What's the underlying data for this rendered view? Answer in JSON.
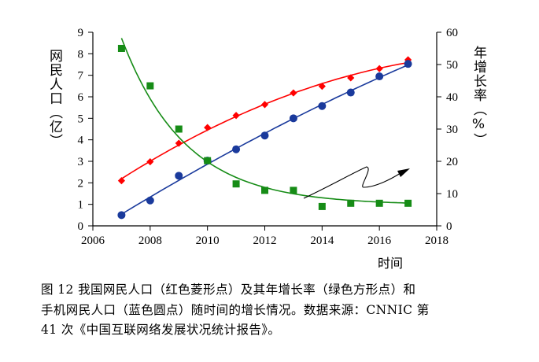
{
  "chart_data": {
    "type": "line",
    "title": "",
    "xlabel": "时间",
    "ylabel_left": "网民人口（亿）",
    "ylabel_right": "年增长率（%）",
    "x_ticks": [
      2006,
      2008,
      2010,
      2012,
      2014,
      2016,
      2018
    ],
    "y_left_ticks": [
      0,
      1,
      2,
      3,
      4,
      5,
      6,
      7,
      8,
      9
    ],
    "y_right_ticks": [
      0,
      10,
      20,
      30,
      40,
      50,
      60
    ],
    "xlim": [
      2006,
      2018
    ],
    "ylim_left": [
      0,
      9
    ],
    "ylim_right": [
      0,
      60
    ],
    "x": [
      2007,
      2008,
      2009,
      2010,
      2011,
      2012,
      2013,
      2014,
      2015,
      2016,
      2017
    ],
    "series": [
      {
        "name": "网民人口",
        "marker": "diamond",
        "axis": "left",
        "color": "#ff0000",
        "values": [
          2.1,
          2.98,
          3.84,
          4.57,
          5.13,
          5.64,
          6.18,
          6.49,
          6.88,
          7.31,
          7.72
        ]
      },
      {
        "name": "手机网民人口",
        "marker": "circle",
        "axis": "left",
        "color": "#1a3a9c",
        "values": [
          0.5,
          1.18,
          2.33,
          3.03,
          3.56,
          4.2,
          5.0,
          5.57,
          6.2,
          6.95,
          7.53
        ]
      },
      {
        "name": "年增长率",
        "marker": "square",
        "axis": "right",
        "color": "#168c16",
        "values": [
          55,
          43.4,
          30,
          20.2,
          13,
          11,
          11,
          6,
          7,
          7,
          7
        ]
      }
    ]
  },
  "caption": {
    "line1": "图 12 我国网民人口（红色菱形点）及其年增长率（绿色方形点）和",
    "line2": "手机网民人口（蓝色圆点）随时间的增长情况。数据来源：CNNIC 第",
    "line3": "41 次《中国互联网络发展状况统计报告》。"
  }
}
